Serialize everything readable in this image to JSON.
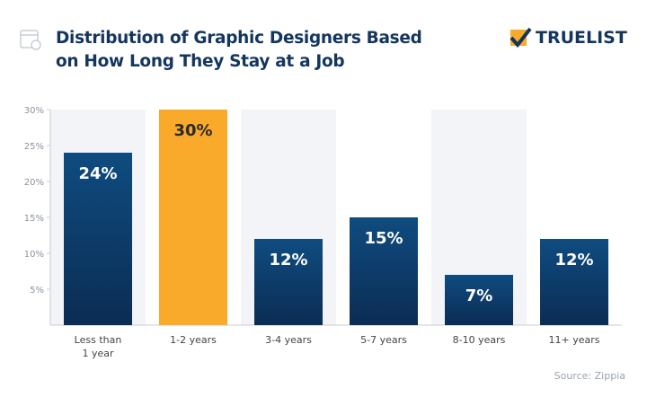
{
  "header": {
    "title_line1": "Distribution of Graphic Designers Based",
    "title_line2": "on How Long They Stay at a Job",
    "logo": "TRUELIST"
  },
  "source": "Source: Zippia",
  "colors": {
    "bar": "#0d3d6e",
    "highlight": "#f9aa2a",
    "band": "#f2f4f7",
    "title": "#14365e"
  },
  "chart_data": {
    "type": "bar",
    "categories": [
      [
        "Less than",
        "1 year"
      ],
      [
        "1-2 years"
      ],
      [
        "3-4 years"
      ],
      [
        "5-7 years"
      ],
      [
        "8-10 years"
      ],
      [
        "11+ years"
      ]
    ],
    "values": [
      24,
      30,
      12,
      15,
      7,
      12
    ],
    "data_labels": [
      "24%",
      "30%",
      "12%",
      "15%",
      "7%",
      "12%"
    ],
    "highlight_index": 1,
    "ylim": [
      0,
      30
    ],
    "yticks": [
      5,
      10,
      15,
      20,
      25,
      30
    ],
    "ytick_labels": [
      "5%",
      "10%",
      "15%",
      "20%",
      "25%",
      "30%"
    ],
    "grid": false
  }
}
